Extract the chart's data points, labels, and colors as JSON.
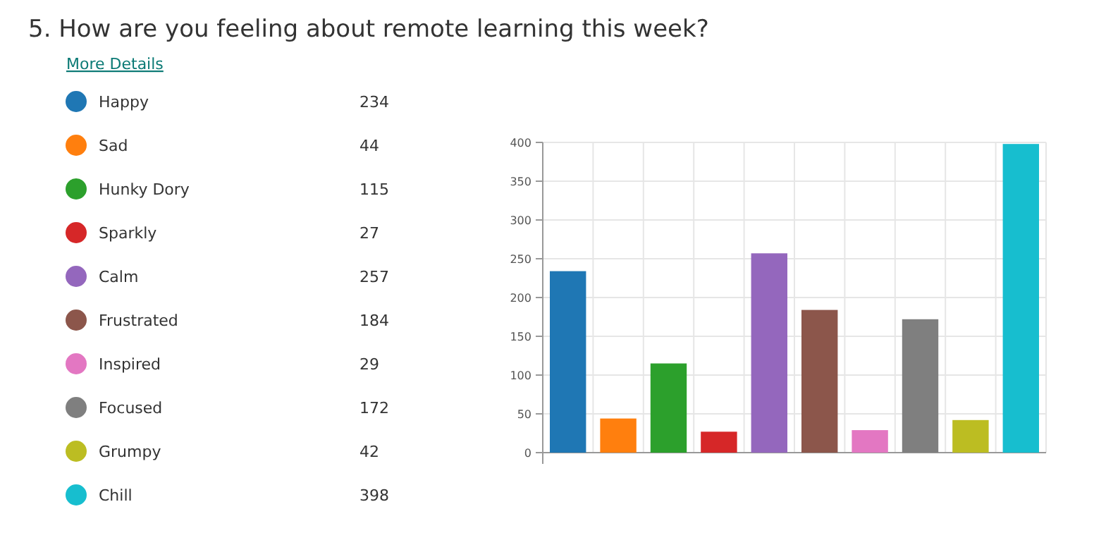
{
  "chart_data": {
    "type": "bar",
    "title": "5.  How are you feeling about remote learning this week?",
    "subtitle": "More Details",
    "categories": [
      null,
      null,
      null,
      null,
      null,
      null,
      null,
      null,
      null,
      null
    ],
    "series": [
      {
        "name": "Happy",
        "color": "#1f77b4",
        "values": [
          234,
          null,
          null,
          null,
          null,
          null,
          null,
          null,
          null,
          null
        ]
      },
      {
        "name": "Sad",
        "color": "#ff7f0e",
        "values": [
          null,
          44,
          null,
          null,
          null,
          null,
          null,
          null,
          null,
          null
        ]
      },
      {
        "name": "Hunky Dory",
        "color": "#2ca02c",
        "values": [
          null,
          null,
          115,
          null,
          null,
          null,
          null,
          null,
          null,
          null
        ]
      },
      {
        "name": "Sparkly",
        "color": "#d62728",
        "values": [
          null,
          null,
          null,
          27,
          null,
          null,
          null,
          null,
          null,
          null
        ]
      },
      {
        "name": "Calm",
        "color": "#9467bd",
        "values": [
          null,
          null,
          null,
          null,
          257,
          null,
          null,
          null,
          null,
          null
        ]
      },
      {
        "name": "Frustrated",
        "color": "#8c564b",
        "values": [
          null,
          null,
          null,
          null,
          null,
          184,
          null,
          null,
          null,
          null
        ]
      },
      {
        "name": "Inspired",
        "color": "#e377c2",
        "values": [
          null,
          null,
          null,
          null,
          null,
          null,
          29,
          null,
          null,
          null
        ]
      },
      {
        "name": "Focused",
        "color": "#7f7f7f",
        "values": [
          null,
          null,
          null,
          null,
          null,
          null,
          null,
          172,
          null,
          null
        ]
      },
      {
        "name": "Grumpy",
        "color": "#bcbd22",
        "values": [
          null,
          null,
          null,
          null,
          null,
          null,
          null,
          null,
          42,
          null
        ]
      },
      {
        "name": "Chill",
        "color": "#17becf",
        "values": [
          null,
          null,
          null,
          null,
          null,
          null,
          null,
          null,
          null,
          398
        ]
      }
    ],
    "ylim": [
      0,
      400
    ],
    "yticks": [
      0,
      50,
      100,
      150,
      200,
      250,
      300,
      350,
      400
    ],
    "grid": true,
    "legend": "left",
    "annotations": [
      "234",
      "44",
      "115",
      "27",
      "257",
      "184",
      "29",
      "172",
      "42",
      "398"
    ]
  }
}
